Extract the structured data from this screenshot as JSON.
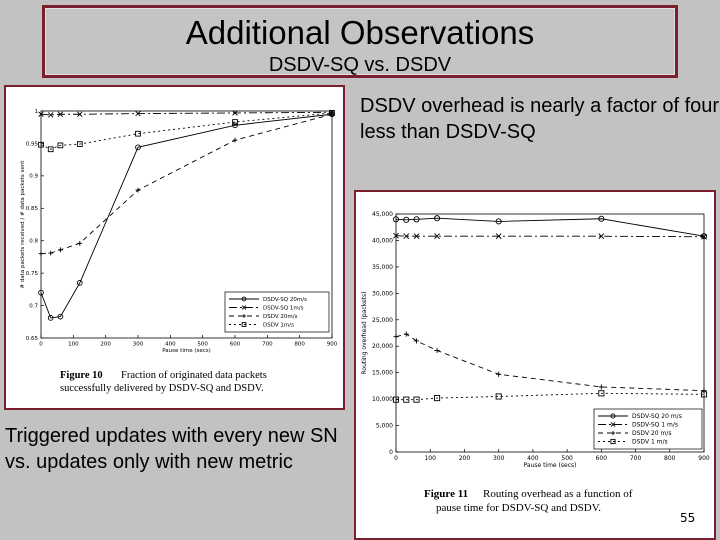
{
  "slide": {
    "title": "Additional Observations",
    "subtitle": "DSDV-SQ vs. DSDV",
    "note_right": "DSDV overhead is nearly a factor of four less than DSDV-SQ",
    "note_left": "Triggered updates with every new SN vs. updates only with new metric",
    "page_number": "55"
  },
  "chart_data": [
    {
      "type": "line",
      "caption_label": "Figure 10",
      "caption_line1": "Fraction of originated data packets",
      "caption_line2": "successfully delivered by DSDV-SQ and DSDV.",
      "xlabel": "Pause time (secs)",
      "ylabel": "# data packets received / # data packets sent",
      "xlim": [
        0,
        900
      ],
      "ylim": [
        0.65,
        1.0
      ],
      "x_ticks": [
        "0",
        "100",
        "200",
        "300",
        "400",
        "500",
        "600",
        "700",
        "800",
        "900"
      ],
      "y_ticks": [
        "0.65",
        "0.7",
        "0.75",
        "0.8",
        "0.85",
        "0.9",
        "0.95",
        "1"
      ],
      "legend_position": "bottom-right",
      "series": [
        {
          "name": "DSDV-SQ 20m/s",
          "marker": "circle",
          "dash": "",
          "x": [
            0,
            30,
            60,
            120,
            300,
            600,
            900
          ],
          "y": [
            0.72,
            0.681,
            0.683,
            0.735,
            0.944,
            0.978,
            0.995
          ]
        },
        {
          "name": "DSDV-SQ 1m/s",
          "marker": "x",
          "dash": "8,3,2,3",
          "x": [
            0,
            30,
            60,
            120,
            300,
            600,
            900
          ],
          "y": [
            0.995,
            0.994,
            0.995,
            0.995,
            0.996,
            0.997,
            0.998
          ]
        },
        {
          "name": "DSDV 20m/s",
          "marker": "plus",
          "dash": "5,4",
          "x": [
            0,
            30,
            60,
            120,
            300,
            600,
            900
          ],
          "y": [
            0.78,
            0.781,
            0.786,
            0.796,
            0.878,
            0.955,
            0.995
          ]
        },
        {
          "name": "DSDV 1m/s",
          "marker": "square",
          "dash": "2,3",
          "x": [
            0,
            30,
            60,
            120,
            300,
            600,
            900
          ],
          "y": [
            0.948,
            0.941,
            0.947,
            0.949,
            0.965,
            0.983,
            0.997
          ]
        }
      ]
    },
    {
      "type": "line",
      "caption_label": "Figure 11",
      "caption_line1": "Routing overhead as a function of",
      "caption_line2": "pause time for DSDV-SQ and DSDV.",
      "xlabel": "Pause time (secs)",
      "ylabel": "Routing overhead (packets)",
      "xlim": [
        0,
        900
      ],
      "ylim": [
        0,
        45000
      ],
      "x_ticks": [
        "0",
        "100",
        "200",
        "300",
        "400",
        "500",
        "600",
        "700",
        "800",
        "900"
      ],
      "y_ticks": [
        "0",
        "5,000",
        "10,000",
        "15,000",
        "20,000",
        "25,000",
        "30,000",
        "35,000",
        "40,000",
        "45,000"
      ],
      "legend_position": "bottom-right",
      "series": [
        {
          "name": "DSDV-SQ 20 m/s",
          "marker": "circle",
          "dash": "",
          "x": [
            0,
            30,
            60,
            120,
            300,
            600,
            900
          ],
          "y": [
            44000,
            43900,
            44000,
            44200,
            43600,
            44100,
            40800
          ]
        },
        {
          "name": "DSDV-SQ 1 m/s",
          "marker": "x",
          "dash": "8,3,2,3",
          "x": [
            0,
            30,
            60,
            120,
            300,
            600,
            900
          ],
          "y": [
            40900,
            40800,
            40800,
            40800,
            40800,
            40800,
            40700
          ]
        },
        {
          "name": "DSDV 20 m/s",
          "marker": "plus",
          "dash": "5,4",
          "x": [
            0,
            30,
            60,
            120,
            300,
            600,
            900
          ],
          "y": [
            21800,
            22300,
            21000,
            19200,
            14700,
            12300,
            11600
          ]
        },
        {
          "name": "DSDV 1 m/s",
          "marker": "square",
          "dash": "2,3",
          "x": [
            0,
            30,
            60,
            120,
            300,
            600,
            900
          ],
          "y": [
            9900,
            9900,
            9900,
            10200,
            10500,
            11100,
            10900
          ]
        }
      ]
    }
  ]
}
